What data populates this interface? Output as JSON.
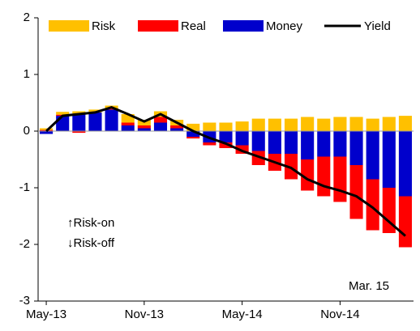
{
  "chart_data": {
    "type": "bar",
    "categories": [
      "May-13",
      null,
      null,
      null,
      null,
      null,
      "Nov-13",
      null,
      null,
      null,
      null,
      null,
      "May-14",
      null,
      null,
      null,
      null,
      null,
      "Nov-14",
      null,
      null,
      null,
      null
    ],
    "series": [
      {
        "name": "Risk",
        "color": "#ffc000",
        "values": [
          0.03,
          0.05,
          0.05,
          0.05,
          0.05,
          0.15,
          0.1,
          0.1,
          0.1,
          0.13,
          0.15,
          0.15,
          0.17,
          0.22,
          0.22,
          0.22,
          0.25,
          0.22,
          0.25,
          0.25,
          0.22,
          0.25,
          0.27
        ]
      },
      {
        "name": "Real",
        "color": "#ff0000",
        "values": [
          0.02,
          0.02,
          -0.03,
          0.0,
          0.02,
          0.05,
          0.05,
          0.1,
          0.05,
          -0.03,
          -0.05,
          -0.1,
          -0.15,
          -0.25,
          -0.3,
          -0.45,
          -0.55,
          -0.7,
          -0.8,
          -0.95,
          -0.9,
          -0.8,
          -0.9
        ]
      },
      {
        "name": "Money",
        "color": "#0000cc",
        "values": [
          -0.05,
          0.27,
          0.3,
          0.33,
          0.38,
          0.1,
          0.05,
          0.15,
          0.05,
          -0.1,
          -0.2,
          -0.2,
          -0.25,
          -0.35,
          -0.4,
          -0.4,
          -0.5,
          -0.45,
          -0.45,
          -0.6,
          -0.85,
          -1.0,
          -1.15
        ]
      },
      {
        "name": "Yield",
        "type": "line",
        "color": "#000000",
        "values": [
          0.0,
          0.27,
          0.3,
          0.33,
          0.42,
          0.3,
          0.17,
          0.3,
          0.15,
          0.0,
          -0.12,
          -0.22,
          -0.35,
          -0.45,
          -0.55,
          -0.65,
          -0.85,
          -0.97,
          -1.05,
          -1.15,
          -1.35,
          -1.6,
          -1.85
        ]
      }
    ],
    "ylim": [
      -3,
      2
    ],
    "yticks": [
      -3,
      -2,
      -1,
      0,
      1,
      2
    ],
    "annotations": [
      "↑Risk-on",
      "↓Risk-off",
      "Mar. 15"
    ]
  }
}
